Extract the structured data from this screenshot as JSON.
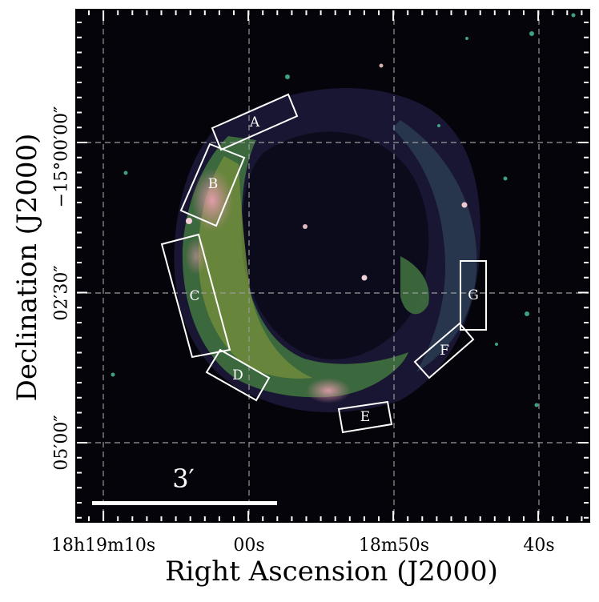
{
  "figure": {
    "xlabel": "Right Ascension (J2000)",
    "ylabel": "Declination (J2000)",
    "xticks": [
      "18h19m10s",
      "00s",
      "18m50s",
      "40s"
    ],
    "yticks": [
      "−15°00′00″",
      "02′30″",
      "05′00″"
    ],
    "scalebar_label": "3′",
    "regions": [
      "A",
      "B",
      "C",
      "D",
      "E",
      "F",
      "G"
    ],
    "colors": {
      "background": "#04040a",
      "shell_dark": "#2a2650",
      "shell_mid": "#2e5a3c",
      "shell_bright": "#6a8a3a",
      "shell_hot": "#d78aa0",
      "grid": "#9a9a9a",
      "annotation": "#ffffff"
    }
  }
}
